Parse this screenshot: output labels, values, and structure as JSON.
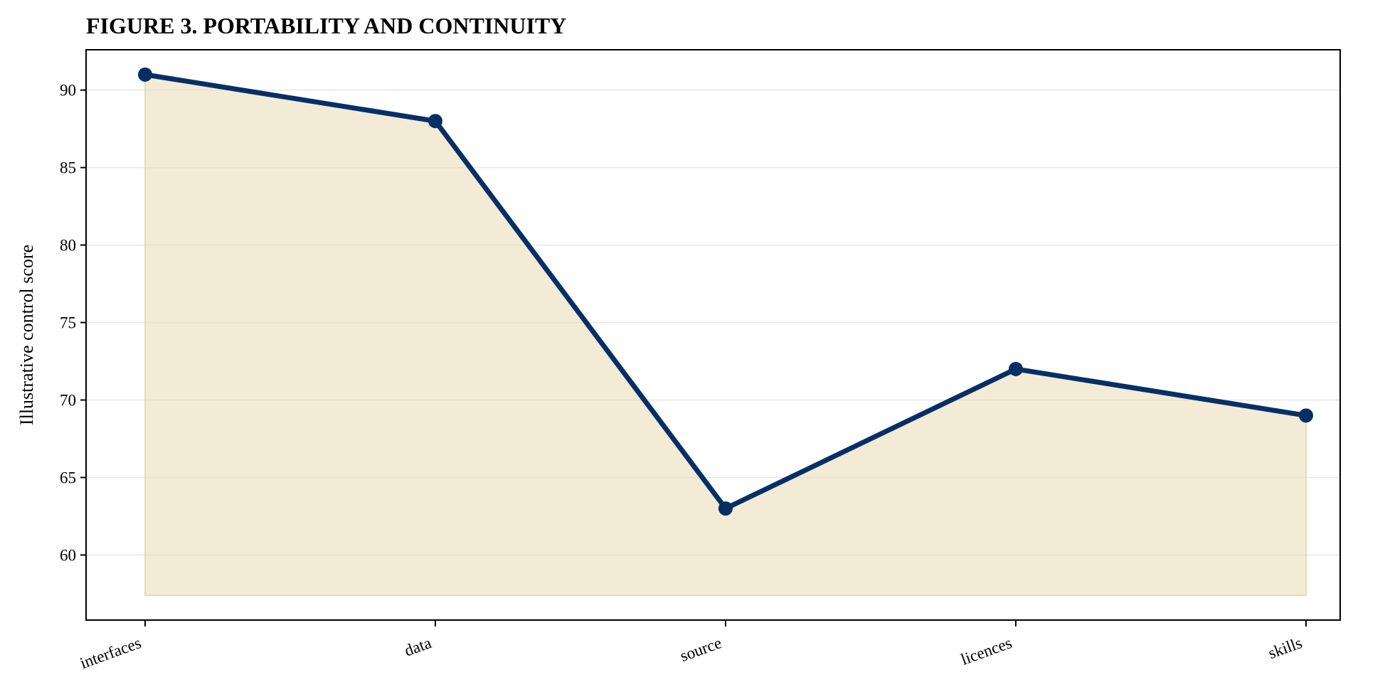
{
  "chart_data": {
    "type": "line",
    "title": "FIGURE 3. PORTABILITY AND CONTINUITY",
    "xlabel": "",
    "ylabel": "Illustrative control score",
    "categories": [
      "interfaces",
      "data",
      "source",
      "licences",
      "skills"
    ],
    "series": [
      {
        "values": [
          91,
          88,
          63,
          72,
          69
        ],
        "color": "#062f66"
      }
    ],
    "fill_color": "#e9dbb5",
    "fill_baseline": 57.4,
    "ylim": [
      55.8,
      92.6
    ],
    "yticks": [
      60,
      65,
      70,
      75,
      80,
      85,
      90
    ],
    "grid": "horizontal",
    "legend": "none"
  }
}
